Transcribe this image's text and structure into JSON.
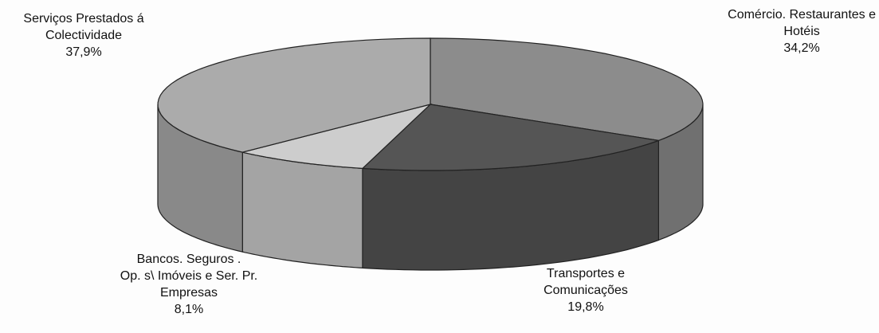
{
  "chart_data": {
    "type": "pie",
    "categories": [
      "Comércio.  Restaurantes e\nHotéis",
      "Transportes e\nComunicações",
      "Bancos. Seguros .\nOp. s\\ Imóveis e Ser. Pr.\nEmpresas",
      "Serviços Prestados á\nColectividade"
    ],
    "values": [
      34.2,
      19.8,
      8.1,
      37.9
    ],
    "value_labels": [
      "34,2%",
      "19,8%",
      "8,1%",
      "37,9%"
    ],
    "colors": [
      "#8c8c8c",
      "#555555",
      "#cdcdcd",
      "#ababab"
    ]
  }
}
